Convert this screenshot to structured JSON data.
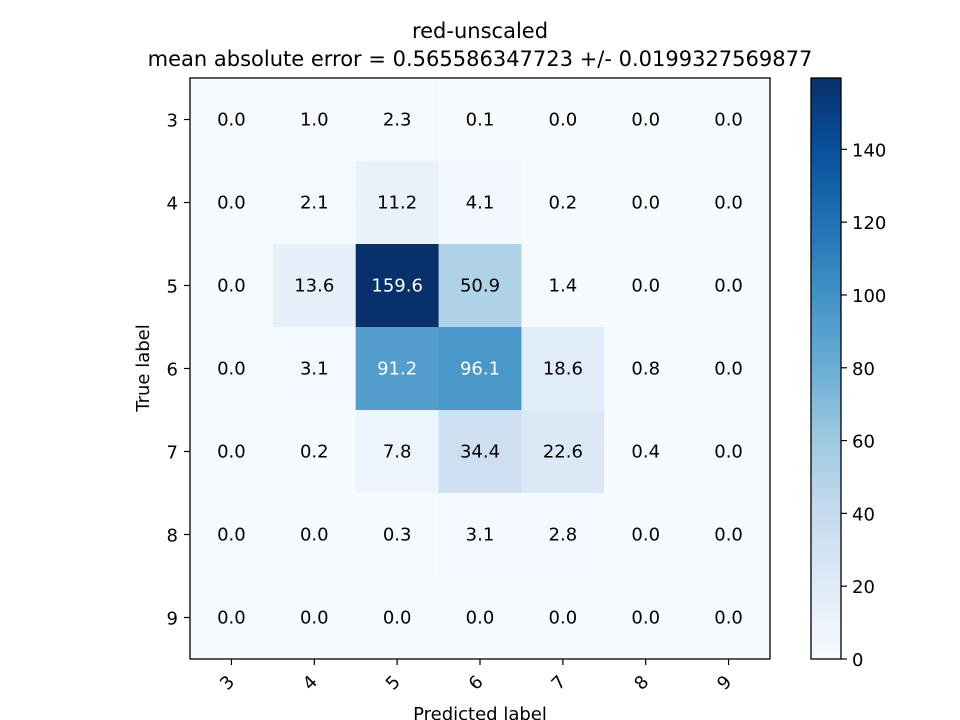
{
  "chart_data": {
    "type": "heatmap",
    "title": "red-unscaled",
    "subtitle": "mean absolute error = 0.565586347723 +/- 0.0199327569877",
    "xlabel": "Predicted label",
    "ylabel": "True label",
    "x_categories": [
      "3",
      "4",
      "5",
      "6",
      "7",
      "8",
      "9"
    ],
    "y_categories": [
      "3",
      "4",
      "5",
      "6",
      "7",
      "8",
      "9"
    ],
    "values": [
      [
        0.0,
        1.0,
        2.3,
        0.1,
        0.0,
        0.0,
        0.0
      ],
      [
        0.0,
        2.1,
        11.2,
        4.1,
        0.2,
        0.0,
        0.0
      ],
      [
        0.0,
        13.6,
        159.6,
        50.9,
        1.4,
        0.0,
        0.0
      ],
      [
        0.0,
        3.1,
        91.2,
        96.1,
        18.6,
        0.8,
        0.0
      ],
      [
        0.0,
        0.2,
        7.8,
        34.4,
        22.6,
        0.4,
        0.0
      ],
      [
        0.0,
        0.0,
        0.3,
        3.1,
        2.8,
        0.0,
        0.0
      ],
      [
        0.0,
        0.0,
        0.0,
        0.0,
        0.0,
        0.0,
        0.0
      ]
    ],
    "colormap": "Blues",
    "color_min": "#f7fbff",
    "color_max": "#08306b",
    "color_range": [
      0,
      159.6
    ],
    "colorbar_ticks": [
      "0",
      "20",
      "40",
      "60",
      "80",
      "100",
      "120",
      "140"
    ],
    "grid": false
  }
}
